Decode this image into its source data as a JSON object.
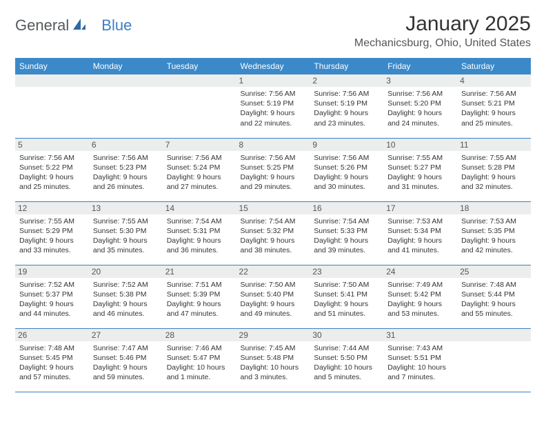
{
  "logo": {
    "word1": "General",
    "word2": "Blue"
  },
  "title": "January 2025",
  "location": "Mechanicsburg, Ohio, United States",
  "colors": {
    "header_bg": "#3b89c9",
    "header_text": "#ffffff",
    "daynum_bg": "#eceded",
    "rule": "#3b7fc4",
    "logo_gray": "#55595c",
    "logo_blue": "#3b7fc4"
  },
  "day_headers": [
    "Sunday",
    "Monday",
    "Tuesday",
    "Wednesday",
    "Thursday",
    "Friday",
    "Saturday"
  ],
  "weeks": [
    [
      null,
      null,
      null,
      {
        "n": "1",
        "sr": "7:56 AM",
        "ss": "5:19 PM",
        "dl": "9 hours and 22 minutes."
      },
      {
        "n": "2",
        "sr": "7:56 AM",
        "ss": "5:19 PM",
        "dl": "9 hours and 23 minutes."
      },
      {
        "n": "3",
        "sr": "7:56 AM",
        "ss": "5:20 PM",
        "dl": "9 hours and 24 minutes."
      },
      {
        "n": "4",
        "sr": "7:56 AM",
        "ss": "5:21 PM",
        "dl": "9 hours and 25 minutes."
      }
    ],
    [
      {
        "n": "5",
        "sr": "7:56 AM",
        "ss": "5:22 PM",
        "dl": "9 hours and 25 minutes."
      },
      {
        "n": "6",
        "sr": "7:56 AM",
        "ss": "5:23 PM",
        "dl": "9 hours and 26 minutes."
      },
      {
        "n": "7",
        "sr": "7:56 AM",
        "ss": "5:24 PM",
        "dl": "9 hours and 27 minutes."
      },
      {
        "n": "8",
        "sr": "7:56 AM",
        "ss": "5:25 PM",
        "dl": "9 hours and 29 minutes."
      },
      {
        "n": "9",
        "sr": "7:56 AM",
        "ss": "5:26 PM",
        "dl": "9 hours and 30 minutes."
      },
      {
        "n": "10",
        "sr": "7:55 AM",
        "ss": "5:27 PM",
        "dl": "9 hours and 31 minutes."
      },
      {
        "n": "11",
        "sr": "7:55 AM",
        "ss": "5:28 PM",
        "dl": "9 hours and 32 minutes."
      }
    ],
    [
      {
        "n": "12",
        "sr": "7:55 AM",
        "ss": "5:29 PM",
        "dl": "9 hours and 33 minutes."
      },
      {
        "n": "13",
        "sr": "7:55 AM",
        "ss": "5:30 PM",
        "dl": "9 hours and 35 minutes."
      },
      {
        "n": "14",
        "sr": "7:54 AM",
        "ss": "5:31 PM",
        "dl": "9 hours and 36 minutes."
      },
      {
        "n": "15",
        "sr": "7:54 AM",
        "ss": "5:32 PM",
        "dl": "9 hours and 38 minutes."
      },
      {
        "n": "16",
        "sr": "7:54 AM",
        "ss": "5:33 PM",
        "dl": "9 hours and 39 minutes."
      },
      {
        "n": "17",
        "sr": "7:53 AM",
        "ss": "5:34 PM",
        "dl": "9 hours and 41 minutes."
      },
      {
        "n": "18",
        "sr": "7:53 AM",
        "ss": "5:35 PM",
        "dl": "9 hours and 42 minutes."
      }
    ],
    [
      {
        "n": "19",
        "sr": "7:52 AM",
        "ss": "5:37 PM",
        "dl": "9 hours and 44 minutes."
      },
      {
        "n": "20",
        "sr": "7:52 AM",
        "ss": "5:38 PM",
        "dl": "9 hours and 46 minutes."
      },
      {
        "n": "21",
        "sr": "7:51 AM",
        "ss": "5:39 PM",
        "dl": "9 hours and 47 minutes."
      },
      {
        "n": "22",
        "sr": "7:50 AM",
        "ss": "5:40 PM",
        "dl": "9 hours and 49 minutes."
      },
      {
        "n": "23",
        "sr": "7:50 AM",
        "ss": "5:41 PM",
        "dl": "9 hours and 51 minutes."
      },
      {
        "n": "24",
        "sr": "7:49 AM",
        "ss": "5:42 PM",
        "dl": "9 hours and 53 minutes."
      },
      {
        "n": "25",
        "sr": "7:48 AM",
        "ss": "5:44 PM",
        "dl": "9 hours and 55 minutes."
      }
    ],
    [
      {
        "n": "26",
        "sr": "7:48 AM",
        "ss": "5:45 PM",
        "dl": "9 hours and 57 minutes."
      },
      {
        "n": "27",
        "sr": "7:47 AM",
        "ss": "5:46 PM",
        "dl": "9 hours and 59 minutes."
      },
      {
        "n": "28",
        "sr": "7:46 AM",
        "ss": "5:47 PM",
        "dl": "10 hours and 1 minute."
      },
      {
        "n": "29",
        "sr": "7:45 AM",
        "ss": "5:48 PM",
        "dl": "10 hours and 3 minutes."
      },
      {
        "n": "30",
        "sr": "7:44 AM",
        "ss": "5:50 PM",
        "dl": "10 hours and 5 minutes."
      },
      {
        "n": "31",
        "sr": "7:43 AM",
        "ss": "5:51 PM",
        "dl": "10 hours and 7 minutes."
      },
      null
    ]
  ],
  "labels": {
    "sunrise": "Sunrise: ",
    "sunset": "Sunset: ",
    "daylight": "Daylight: "
  }
}
